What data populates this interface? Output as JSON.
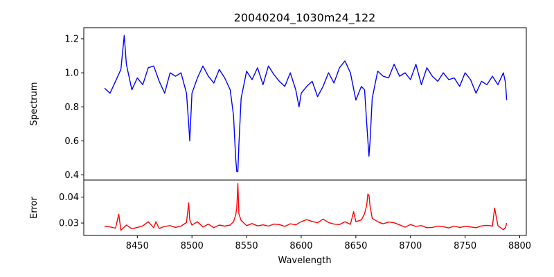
{
  "chart_data": [
    {
      "type": "line",
      "title": "20040204_1030m24_122",
      "xlabel": "",
      "ylabel": "Spectrum",
      "xlim": [
        8401,
        8806
      ],
      "ylim": [
        0.37,
        1.265
      ],
      "xticks": [
        8450,
        8500,
        8550,
        8600,
        8650,
        8700,
        8750,
        8800
      ],
      "yticks": [
        0.4,
        0.6,
        0.8,
        1.0,
        1.2
      ],
      "ytick_labels": [
        "0.4",
        "0.6",
        "0.8",
        "1.0",
        "1.2"
      ],
      "grid": false,
      "series": [
        {
          "color": "#0000ff",
          "x": [
            8420,
            8425,
            8430,
            8435,
            8438,
            8440,
            8445,
            8450,
            8455,
            8460,
            8465,
            8470,
            8475,
            8480,
            8485,
            8490,
            8495,
            8497,
            8498,
            8500,
            8505,
            8510,
            8515,
            8520,
            8525,
            8530,
            8535,
            8538,
            8540,
            8541,
            8542,
            8543,
            8545,
            8550,
            8555,
            8560,
            8565,
            8570,
            8575,
            8580,
            8585,
            8590,
            8595,
            8598,
            8600,
            8605,
            8610,
            8615,
            8620,
            8625,
            8630,
            8635,
            8640,
            8645,
            8650,
            8655,
            8658,
            8660,
            8662,
            8663,
            8665,
            8670,
            8675,
            8680,
            8685,
            8690,
            8695,
            8700,
            8705,
            8710,
            8715,
            8720,
            8725,
            8730,
            8735,
            8740,
            8745,
            8750,
            8755,
            8760,
            8765,
            8770,
            8775,
            8780,
            8785,
            8787,
            8788
          ],
          "values": [
            0.91,
            0.88,
            0.95,
            1.02,
            1.22,
            1.05,
            0.9,
            0.97,
            0.93,
            1.03,
            1.04,
            0.95,
            0.88,
            1.0,
            0.98,
            1.0,
            0.88,
            0.7,
            0.6,
            0.88,
            0.97,
            1.04,
            0.98,
            0.94,
            1.02,
            0.97,
            0.9,
            0.75,
            0.5,
            0.42,
            0.42,
            0.58,
            0.85,
            1.01,
            0.96,
            1.03,
            0.93,
            1.04,
            0.99,
            0.95,
            0.92,
            1.0,
            0.9,
            0.8,
            0.88,
            0.92,
            0.95,
            0.86,
            0.92,
            1.0,
            0.94,
            1.03,
            1.07,
            1.0,
            0.84,
            0.92,
            0.9,
            0.7,
            0.51,
            0.6,
            0.85,
            1.01,
            0.98,
            0.97,
            1.05,
            0.98,
            1.0,
            0.96,
            1.05,
            0.93,
            1.03,
            0.98,
            0.95,
            1.0,
            0.96,
            0.97,
            0.92,
            1.0,
            0.96,
            0.88,
            0.95,
            0.93,
            0.98,
            0.93,
            1.0,
            0.94,
            0.84
          ]
        }
      ]
    },
    {
      "type": "line",
      "title": "",
      "xlabel": "Wavelength",
      "ylabel": "Error",
      "xlim": [
        8401,
        8806
      ],
      "ylim": [
        0.0252,
        0.0466
      ],
      "xticks": [
        8450,
        8500,
        8550,
        8600,
        8650,
        8700,
        8750,
        8800
      ],
      "yticks": [
        0.03,
        0.04
      ],
      "ytick_labels": [
        "0.03",
        "0.04"
      ],
      "grid": false,
      "series": [
        {
          "color": "#ff0000",
          "x": [
            8420,
            8425,
            8430,
            8433,
            8435,
            8440,
            8445,
            8450,
            8455,
            8460,
            8465,
            8467,
            8470,
            8475,
            8480,
            8485,
            8490,
            8495,
            8497,
            8498,
            8500,
            8505,
            8510,
            8515,
            8520,
            8525,
            8530,
            8535,
            8538,
            8540,
            8541,
            8542,
            8543,
            8545,
            8550,
            8555,
            8560,
            8565,
            8570,
            8575,
            8580,
            8585,
            8590,
            8595,
            8600,
            8605,
            8610,
            8615,
            8620,
            8625,
            8630,
            8635,
            8640,
            8645,
            8648,
            8650,
            8655,
            8658,
            8660,
            8661,
            8662,
            8663,
            8665,
            8670,
            8675,
            8680,
            8685,
            8690,
            8695,
            8700,
            8705,
            8710,
            8715,
            8720,
            8725,
            8730,
            8735,
            8740,
            8745,
            8750,
            8755,
            8760,
            8765,
            8770,
            8775,
            8777,
            8780,
            8785,
            8787,
            8788
          ],
          "values": [
            0.0288,
            0.0285,
            0.028,
            0.0334,
            0.0272,
            0.0292,
            0.0278,
            0.0283,
            0.0289,
            0.0305,
            0.0282,
            0.0305,
            0.0279,
            0.0287,
            0.029,
            0.0283,
            0.0288,
            0.0302,
            0.0378,
            0.0312,
            0.0292,
            0.0305,
            0.0285,
            0.0296,
            0.0282,
            0.0292,
            0.0288,
            0.0292,
            0.0305,
            0.033,
            0.0357,
            0.0453,
            0.0335,
            0.031,
            0.029,
            0.0298,
            0.0289,
            0.0293,
            0.0288,
            0.0296,
            0.0294,
            0.0287,
            0.0297,
            0.0293,
            0.0305,
            0.0313,
            0.0306,
            0.0301,
            0.0315,
            0.0302,
            0.0296,
            0.0294,
            0.0305,
            0.0295,
            0.0344,
            0.0305,
            0.0312,
            0.0336,
            0.037,
            0.0412,
            0.0408,
            0.0365,
            0.0318,
            0.0305,
            0.0297,
            0.0304,
            0.0301,
            0.0293,
            0.0284,
            0.0294,
            0.0287,
            0.029,
            0.0282,
            0.0283,
            0.0288,
            0.0286,
            0.0281,
            0.0288,
            0.0283,
            0.0287,
            0.0285,
            0.0282,
            0.0289,
            0.0291,
            0.0288,
            0.0358,
            0.029,
            0.0274,
            0.0283,
            0.03
          ]
        }
      ]
    }
  ]
}
